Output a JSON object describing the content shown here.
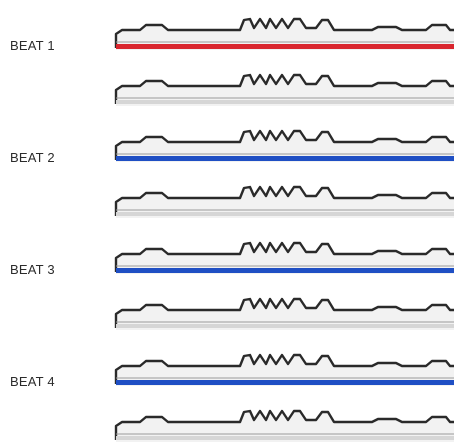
{
  "beats": [
    {
      "label": "BEAT 1"
    },
    {
      "label": "BEAT 2"
    },
    {
      "label": "BEAT 3"
    },
    {
      "label": "BEAT 4"
    }
  ],
  "rows": [
    {
      "beat": 1,
      "accent": "#d9262e",
      "highlighted": true
    },
    {
      "beat": 1,
      "accent": "#d6d6d6",
      "highlighted": false
    },
    {
      "beat": 2,
      "accent": "#1f4fc4",
      "highlighted": true
    },
    {
      "beat": 2,
      "accent": "#d6d6d6",
      "highlighted": false
    },
    {
      "beat": 3,
      "accent": "#1f4fc4",
      "highlighted": true
    },
    {
      "beat": 3,
      "accent": "#d6d6d6",
      "highlighted": false
    },
    {
      "beat": 4,
      "accent": "#1f4fc4",
      "highlighted": true
    },
    {
      "beat": 4,
      "accent": "#d6d6d6",
      "highlighted": false
    }
  ],
  "colors": {
    "outline": "#2a2a2a",
    "panel": "#f2f2f2",
    "label": "#2b2b2b"
  },
  "icons": {
    "controller": "dj-controller-icon"
  }
}
